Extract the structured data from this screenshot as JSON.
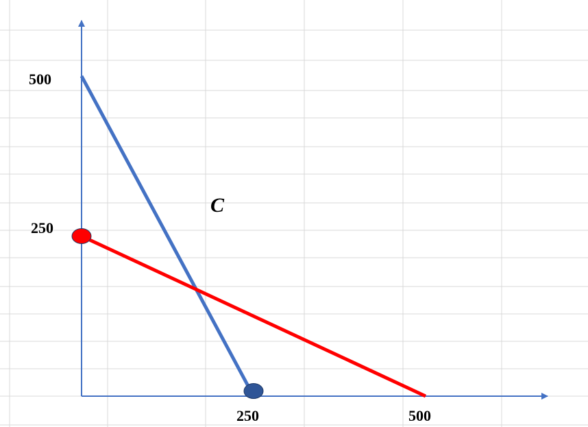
{
  "chart_data": {
    "type": "line",
    "title": "",
    "xlabel": "",
    "ylabel": "",
    "xlim": [
      0,
      680
    ],
    "ylim": [
      0,
      500
    ],
    "x_ticks": [
      "250",
      "500"
    ],
    "y_ticks": [
      "500",
      "250"
    ],
    "grid": true,
    "series": [
      {
        "color": "#4472C4",
        "points": [
          [
            0,
            500
          ],
          [
            250,
            0
          ]
        ]
      },
      {
        "color": "#FF0000",
        "points": [
          [
            0,
            250
          ],
          [
            500,
            0
          ]
        ]
      }
    ],
    "markers": [
      {
        "x": 0,
        "y": 250,
        "color": "#FF0000"
      },
      {
        "x": 250,
        "y": 8,
        "color": "#2F5597"
      }
    ],
    "annotations": [
      {
        "text": "C"
      }
    ]
  }
}
